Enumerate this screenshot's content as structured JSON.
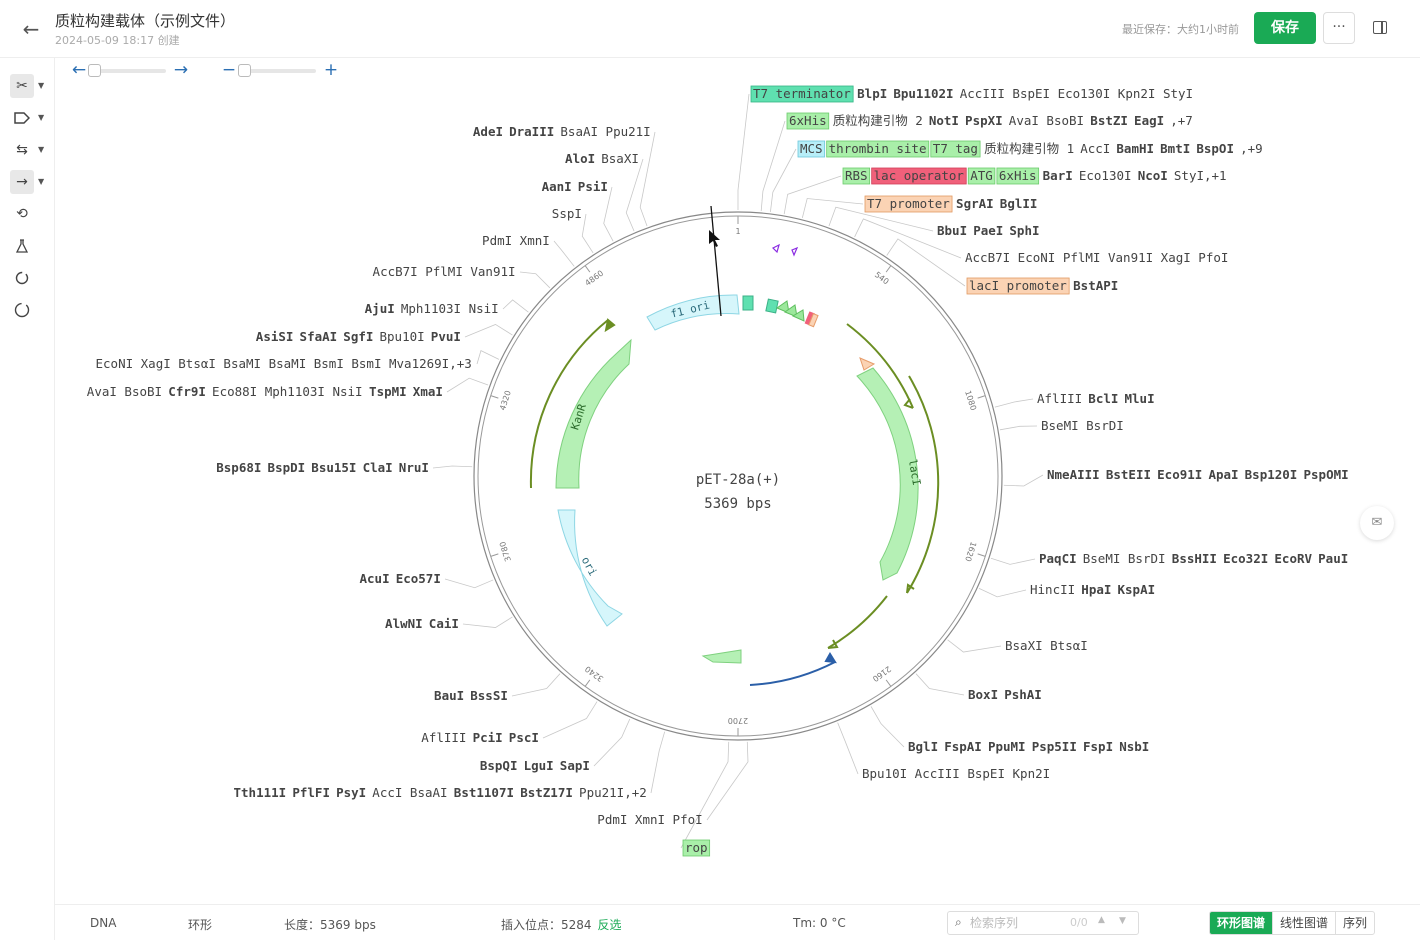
{
  "header": {
    "title": "质粒构建载体（示例文件）",
    "created": "2024-05-09 18:17 创建",
    "last_saved": "最近保存：大约1小时前",
    "save_label": "保存",
    "more_label": "···"
  },
  "icons": {
    "back": "arrow-left-icon",
    "cut": "scissors-icon",
    "tag": "tag-icon",
    "swap": "swap-icon",
    "arrow": "arrow-right-icon",
    "loop": "repeat-icon",
    "flask": "flask-icon",
    "circle": "circle-dashed-icon",
    "spinner": "spinner-icon",
    "panel": "sidebar-toggle-icon"
  },
  "colors": {
    "accent": "#1aaa55",
    "feature_green": "#9ce89c",
    "feature_cyan": "#c9f3fa",
    "feature_red": "#f0607a",
    "feature_orange": "#fbd3b4",
    "feature_teal": "#5fe0b0",
    "purple_primer": "#8a2be2"
  },
  "map": {
    "name": "pET-28a(+)",
    "length_label": "5369 bps",
    "ticks": [
      "1",
      "540",
      "1080",
      "1620",
      "2160",
      "2700",
      "3240",
      "3780",
      "4320",
      "4860"
    ],
    "features": {
      "kanr": "KanR",
      "ori": "ori",
      "f1_ori": "f1 ori",
      "laci": "lacI"
    },
    "labels": {
      "l1": [
        [
          "T7 terminator",
          "tg"
        ],
        [
          "BlpI",
          "b"
        ],
        [
          "Bpu1102I",
          "b"
        ],
        [
          "AccIII BspEI Eco130I Kpn2I StyI",
          "n"
        ]
      ],
      "l2": [
        [
          "6xHis",
          "g"
        ],
        [
          "质粒构建引物 2",
          "p"
        ],
        [
          "NotI",
          "b"
        ],
        [
          "PspXI",
          "b"
        ],
        [
          "AvaI BsoBI",
          "n"
        ],
        [
          "BstZI",
          "b"
        ],
        [
          "EagI",
          "b"
        ],
        [
          ",+7",
          "n"
        ]
      ],
      "l3": [
        [
          "MCS",
          "c"
        ],
        [
          "thrombin site",
          "g"
        ],
        [
          "T7 tag",
          "g"
        ],
        [
          "质粒构建引物 1",
          "p"
        ],
        [
          "AccI",
          "n"
        ],
        [
          "BamHI",
          "b"
        ],
        [
          "BmtI",
          "b"
        ],
        [
          "BspOI",
          "b"
        ],
        [
          ",+9",
          "n"
        ]
      ],
      "l4": [
        [
          "RBS",
          "g"
        ],
        [
          "lac operator",
          "r"
        ],
        [
          "ATG",
          "g"
        ],
        [
          "6xHis",
          "g"
        ],
        [
          "BarI",
          "b"
        ],
        [
          "Eco130I",
          "n"
        ],
        [
          "NcoI",
          "b"
        ],
        [
          "StyI,+1",
          "n"
        ]
      ],
      "l5": [
        [
          "T7 promoter",
          "o"
        ],
        [
          "SgrAI",
          "b"
        ],
        [
          "BglII",
          "b"
        ]
      ],
      "l6": [
        [
          "BbuI",
          "b"
        ],
        [
          "PaeI",
          "b"
        ],
        [
          "SphI",
          "b"
        ]
      ],
      "l7": [
        [
          "AccB7I EcoNI PflMI Van91I XagI PfoI",
          "n"
        ]
      ],
      "l8": [
        [
          "lacI promoter",
          "o"
        ],
        [
          "BstAPI",
          "b"
        ]
      ],
      "l9": [
        [
          "AflIII",
          "n"
        ],
        [
          "BclI",
          "b"
        ],
        [
          "MluI",
          "b"
        ]
      ],
      "l10": [
        [
          "BseMI BsrDI",
          "n"
        ]
      ],
      "l11": [
        [
          "NmeAIII",
          "b"
        ],
        [
          "BstEII",
          "b"
        ],
        [
          "Eco91I",
          "b"
        ],
        [
          "ApaI",
          "b"
        ],
        [
          "Bsp120I",
          "b"
        ],
        [
          "PspOMI",
          "b"
        ]
      ],
      "l12": [
        [
          "PaqCI",
          "b"
        ],
        [
          "BseMI BsrDI",
          "n"
        ],
        [
          "BssHII",
          "b"
        ],
        [
          "Eco32I",
          "b"
        ],
        [
          "EcoRV",
          "b"
        ],
        [
          "PauI",
          "b"
        ]
      ],
      "l13": [
        [
          "HincII",
          "n"
        ],
        [
          "HpaI",
          "b"
        ],
        [
          "KspAI",
          "b"
        ]
      ],
      "l14": [
        [
          "BsaXI BtsαI",
          "n"
        ]
      ],
      "l15": [
        [
          "BoxI",
          "b"
        ],
        [
          "PshAI",
          "b"
        ]
      ],
      "l16": [
        [
          "BglI",
          "b"
        ],
        [
          "FspAI",
          "b"
        ],
        [
          "PpuMI",
          "b"
        ],
        [
          "Psp5II",
          "b"
        ],
        [
          "FspI",
          "b"
        ],
        [
          "NsbI",
          "b"
        ]
      ],
      "l17": [
        [
          "Bpu10I AccIII BspEI Kpn2I",
          "n"
        ]
      ],
      "l18": [
        [
          "PdmI XmnI PfoI",
          "n"
        ]
      ],
      "l19": [
        [
          "rop",
          "g"
        ]
      ],
      "r1": [
        [
          "AdeI",
          "b"
        ],
        [
          "DraIII",
          "b"
        ],
        [
          "BsaAI Ppu21I",
          "n"
        ]
      ],
      "r2": [
        [
          "AloI",
          "b"
        ],
        [
          "BsaXI",
          "n"
        ]
      ],
      "r3": [
        [
          "AanI",
          "b"
        ],
        [
          "PsiI",
          "b"
        ]
      ],
      "r4": [
        [
          "SspI",
          "n"
        ]
      ],
      "r5": [
        [
          "PdmI XmnI",
          "n"
        ]
      ],
      "r6": [
        [
          "AccB7I PflMI Van91I",
          "n"
        ]
      ],
      "r7": [
        [
          "AjuI",
          "b"
        ],
        [
          "Mph1103I NsiI",
          "n"
        ]
      ],
      "r8": [
        [
          "AsiSI",
          "b"
        ],
        [
          "SfaAI",
          "b"
        ],
        [
          "SgfI",
          "b"
        ],
        [
          "Bpu10I",
          "n"
        ],
        [
          "PvuI",
          "b"
        ]
      ],
      "r9": [
        [
          "EcoNI XagI BtsαI BsaMI BsaMI BsmI BsmI Mva1269I,+3",
          "n"
        ]
      ],
      "r10": [
        [
          "AvaI BsoBI",
          "n"
        ],
        [
          "Cfr9I",
          "b"
        ],
        [
          "Eco88I Mph1103I NsiI",
          "n"
        ],
        [
          "TspMI",
          "b"
        ],
        [
          "XmaI",
          "b"
        ]
      ],
      "r11": [
        [
          "Bsp68I",
          "b"
        ],
        [
          "BspDI",
          "b"
        ],
        [
          "Bsu15I",
          "b"
        ],
        [
          "ClaI",
          "b"
        ],
        [
          "NruI",
          "b"
        ]
      ],
      "r12": [
        [
          "AcuI",
          "b"
        ],
        [
          "Eco57I",
          "b"
        ]
      ],
      "r13": [
        [
          "AlwNI",
          "b"
        ],
        [
          "CaiI",
          "b"
        ]
      ],
      "r14": [
        [
          "BauI",
          "b"
        ],
        [
          "BssSI",
          "b"
        ]
      ],
      "r15": [
        [
          "AflIII",
          "n"
        ],
        [
          "PciI",
          "b"
        ],
        [
          "PscI",
          "b"
        ]
      ],
      "r16": [
        [
          "BspQI",
          "b"
        ],
        [
          "LguI",
          "b"
        ],
        [
          "SapI",
          "b"
        ]
      ],
      "r17": [
        [
          "Tth111I",
          "b"
        ],
        [
          "PflFI",
          "b"
        ],
        [
          "PsyI",
          "b"
        ],
        [
          "AccI BsaAI",
          "n"
        ],
        [
          "Bst1107I",
          "b"
        ],
        [
          "BstZ17I",
          "b"
        ],
        [
          "Ppu21I,+2",
          "n"
        ]
      ]
    }
  },
  "footer": {
    "type": "DNA",
    "topology": "环形",
    "length": "长度：5369 bps",
    "insert": "插入位点：5284",
    "reverse": "反选",
    "tm": "Tm: 0 °C",
    "search_placeholder": "检索序列",
    "search_count": "0/0",
    "tabs": [
      "环形图谱",
      "线性图谱",
      "序列"
    ]
  }
}
